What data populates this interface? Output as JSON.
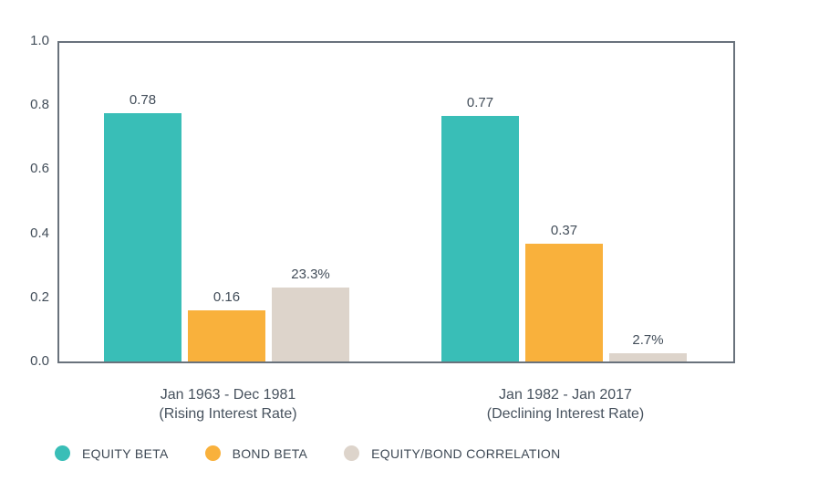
{
  "chart_data": {
    "type": "bar",
    "title": "",
    "categories": [
      "Jan 1963 - Dec 1981 (Rising Interest Rate)",
      "Jan 1982 - Jan 2017 (Declining Interest Rate)"
    ],
    "category_lines": [
      [
        "Jan 1963 - Dec 1981",
        "(Rising Interest Rate)"
      ],
      [
        "Jan 1982 - Jan 2017",
        "(Declining Interest Rate)"
      ]
    ],
    "series": [
      {
        "name": "EQUITY BETA",
        "color": "#39beb7",
        "values": [
          0.78,
          0.77
        ],
        "value_labels": [
          "0.78",
          "0.77"
        ]
      },
      {
        "name": "BOND BETA",
        "color": "#f9b13c",
        "values": [
          0.16,
          0.37
        ],
        "value_labels": [
          "0.16",
          "0.37"
        ]
      },
      {
        "name": "EQUITY/BOND CORRELATION",
        "color": "#ddd4cb",
        "values": [
          0.233,
          0.027
        ],
        "value_labels": [
          "23.3%",
          "2.7%"
        ]
      }
    ],
    "ylim": [
      0,
      1
    ],
    "yticks": [
      1.0,
      0.8,
      0.6,
      0.4,
      0.2,
      0.0
    ],
    "ytick_labels": [
      "1.0",
      "0.8",
      "0.6",
      "0.4",
      "0.2",
      "0.0"
    ],
    "grid": false,
    "legend_position": "bottom",
    "axis_color": "#69727c",
    "label_color": "#424d59"
  }
}
